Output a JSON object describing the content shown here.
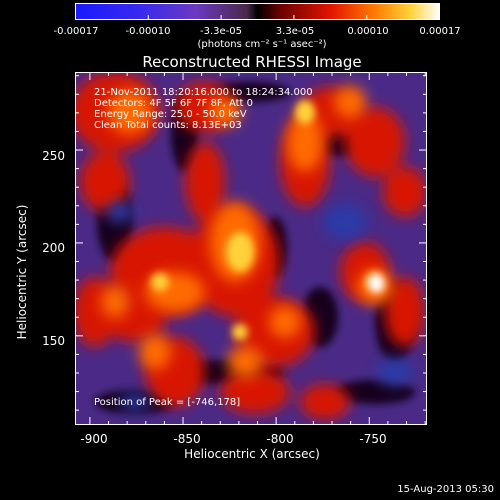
{
  "colorbar": {
    "ticks": [
      "-0.00017",
      "-0.00010",
      "-3.3e-05",
      "3.3e-05",
      "0.00010",
      "0.00017"
    ],
    "unit": "(photons cm⁻² s⁻¹ asec⁻²)"
  },
  "chart_data": {
    "type": "heatmap",
    "title": "Reconstructed RHESSI Image",
    "xlabel": "Heliocentric X (arcsec)",
    "ylabel": "Heliocentric Y (arcsec)",
    "xlim": [
      -908,
      -719
    ],
    "ylim": [
      102,
      292
    ],
    "x_ticks": [
      -900,
      -850,
      -800,
      -750
    ],
    "y_ticks": [
      150,
      200,
      250
    ],
    "colormap": "rhessi",
    "colorbar_range": [
      -0.00017,
      0.00017
    ],
    "peak_position": [
      -746,
      178
    ],
    "annotations": [
      "21-Nov-2011 18:20:16.000 to 18:24:34.000",
      "Detectors: 4F 5F 6F 7F 8F, Att 0",
      "Energy Range: 25.0 - 50.0 keV",
      "Clean     Total counts: 8.13E+03"
    ],
    "peak_label": "Position of Peak = [-746,178]"
  },
  "footer_date": "15-Aug-2013 05:30"
}
